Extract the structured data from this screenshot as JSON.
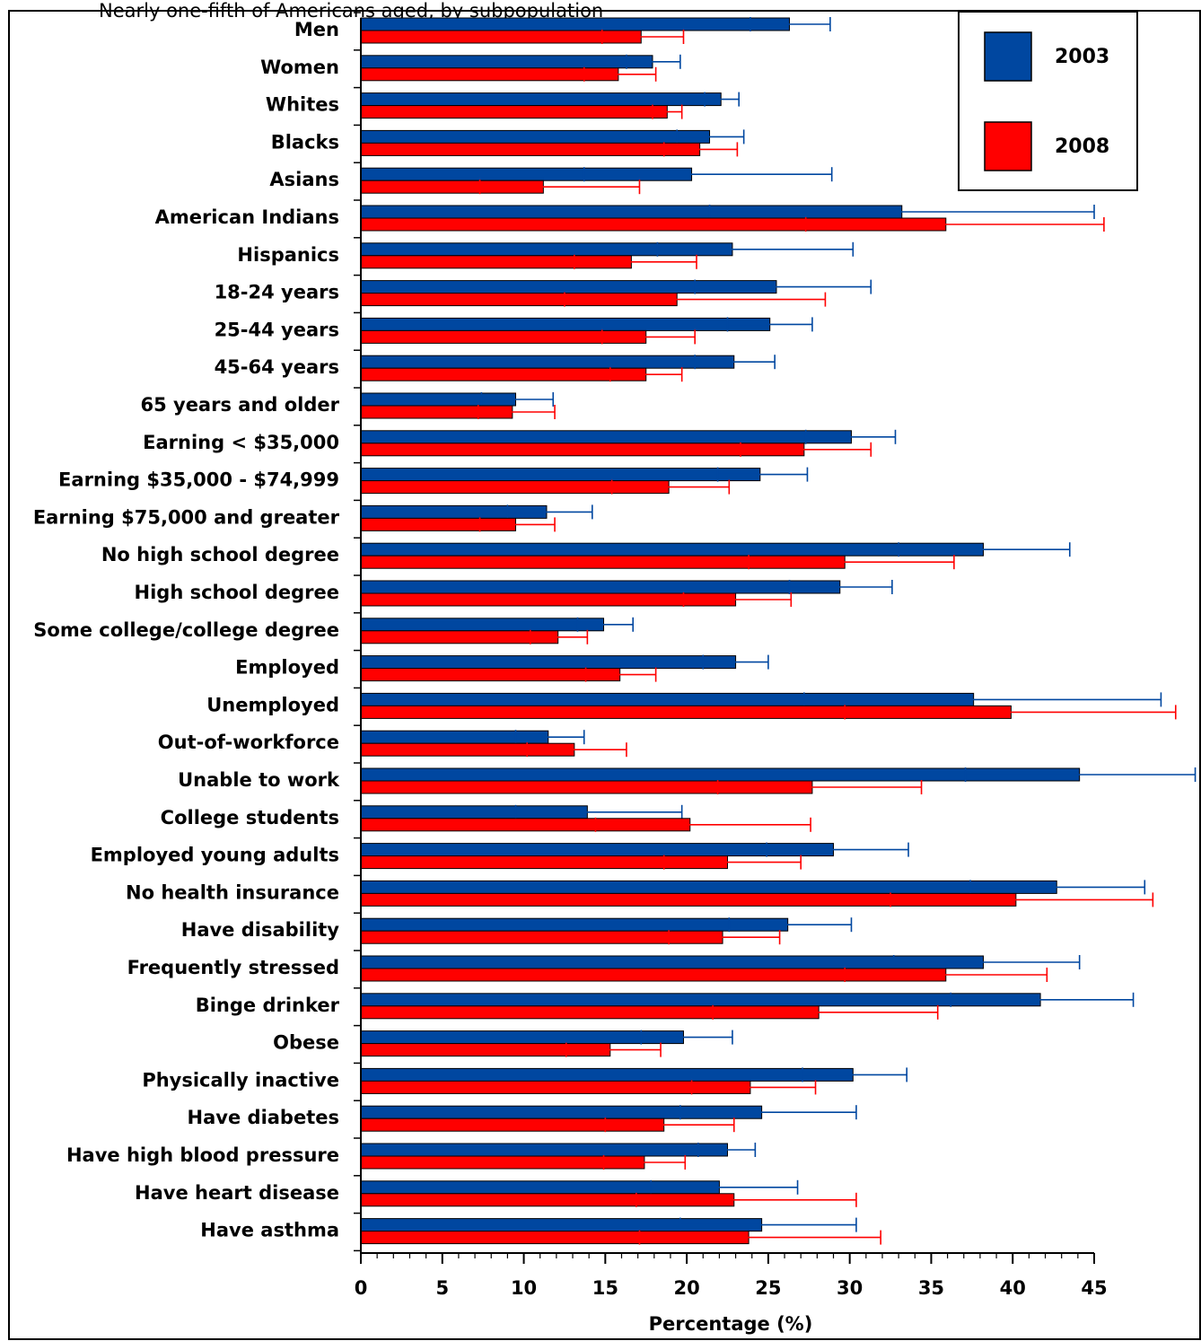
{
  "header_fragment": "Nearly one-fifth of Americans aged, by subpopulation",
  "chart_data": {
    "type": "bar",
    "orientation": "horizontal",
    "xlabel": "Percentage (%)",
    "xlim": [
      0,
      45
    ],
    "xticks": [
      0,
      5,
      10,
      15,
      20,
      25,
      30,
      35,
      40,
      45
    ],
    "grid": false,
    "legend_position": "top-right",
    "categories": [
      "Men",
      "Women",
      "Whites",
      "Blacks",
      "Asians",
      "American Indians",
      "Hispanics",
      "18-24 years",
      "25-44 years",
      "45-64 years",
      "65 years and older",
      "Earning < $35,000",
      "Earning $35,000 - $74,999",
      "Earning $75,000 and greater",
      "No high school degree",
      "High school degree",
      "Some college/college degree",
      "Employed",
      "Unemployed",
      "Out-of-workforce",
      "Unable to work",
      "College students",
      "Employed young adults",
      "No health insurance",
      "Have disability",
      "Frequently stressed",
      "Binge drinker",
      "Obese",
      "Physically inactive",
      "Have diabetes",
      "Have high blood pressure",
      "Have heart disease",
      "Have asthma"
    ],
    "series": [
      {
        "name": "2003",
        "color": "#0047a0",
        "values": [
          26.3,
          17.9,
          22.1,
          21.4,
          20.3,
          33.2,
          22.8,
          25.5,
          25.1,
          22.9,
          9.5,
          30.1,
          24.5,
          11.4,
          38.2,
          29.4,
          14.9,
          23.0,
          37.6,
          11.5,
          44.1,
          13.9,
          29.0,
          42.7,
          26.2,
          38.2,
          41.7,
          19.8,
          30.2,
          24.6,
          22.5,
          22.0,
          24.6
        ],
        "ci_low": [
          23.9,
          16.3,
          21.1,
          19.4,
          13.7,
          21.4,
          18.2,
          20.5,
          22.5,
          20.5,
          7.4,
          27.3,
          21.9,
          9.0,
          33.0,
          26.3,
          13.3,
          21.0,
          27.2,
          9.5,
          37.1,
          9.5,
          24.9,
          37.4,
          22.6,
          32.7,
          36.2,
          17.2,
          27.1,
          19.6,
          20.7,
          17.8,
          19.6
        ],
        "ci_high": [
          28.8,
          19.6,
          23.2,
          23.5,
          28.9,
          45.0,
          30.2,
          31.3,
          27.7,
          25.4,
          11.8,
          32.8,
          27.4,
          14.2,
          43.5,
          32.6,
          16.7,
          25.0,
          49.1,
          13.7,
          51.2,
          19.7,
          33.6,
          48.1,
          30.1,
          44.1,
          47.4,
          22.8,
          33.5,
          30.4,
          24.2,
          26.8,
          30.4
        ]
      },
      {
        "name": "2008",
        "color": "#ff0000",
        "values": [
          17.2,
          15.8,
          18.8,
          20.8,
          11.2,
          35.9,
          16.6,
          19.4,
          17.5,
          17.5,
          9.3,
          27.2,
          18.9,
          9.5,
          29.7,
          23.0,
          12.1,
          15.9,
          39.9,
          13.1,
          27.7,
          20.2,
          22.5,
          40.2,
          22.2,
          35.9,
          28.1,
          15.3,
          23.9,
          18.6,
          17.4,
          22.9,
          23.8
        ],
        "ci_low": [
          14.8,
          13.7,
          17.9,
          18.6,
          7.3,
          27.3,
          13.1,
          12.5,
          14.8,
          15.3,
          7.2,
          23.3,
          15.4,
          7.3,
          23.8,
          19.8,
          10.4,
          13.8,
          29.7,
          10.2,
          21.9,
          14.4,
          18.6,
          32.5,
          18.9,
          29.7,
          21.6,
          12.6,
          20.3,
          15.0,
          14.9,
          16.9,
          17.1
        ],
        "ci_high": [
          19.8,
          18.1,
          19.7,
          23.1,
          17.1,
          45.6,
          20.6,
          28.5,
          20.5,
          19.7,
          11.9,
          31.3,
          22.6,
          11.9,
          36.4,
          26.4,
          13.9,
          18.1,
          50.0,
          16.3,
          34.4,
          27.6,
          27.0,
          48.6,
          25.7,
          42.1,
          35.4,
          18.4,
          27.9,
          22.9,
          19.9,
          30.4,
          31.9
        ]
      }
    ]
  }
}
